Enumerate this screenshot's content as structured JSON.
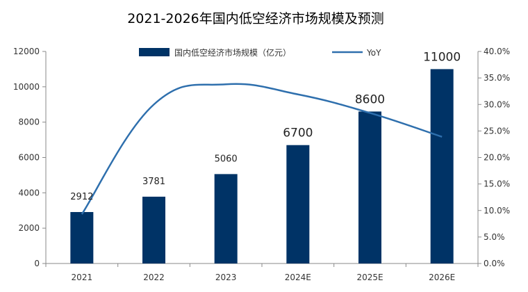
{
  "chart_data": {
    "type": "bar",
    "title": "2021-2026年国内低空经济市场规模及预测",
    "xlabel": "",
    "ylabel": "",
    "categories": [
      "2021",
      "2022",
      "2023",
      "2024E",
      "2025E",
      "2026E"
    ],
    "series": [
      {
        "name": "国内低空经济市场规模（亿元）",
        "type": "bar",
        "axis": "left",
        "values": [
          2912,
          3781,
          5060,
          6700,
          8600,
          11000
        ],
        "labels": [
          "2912",
          "3781",
          "5060",
          "6700",
          "8600",
          "11000"
        ],
        "color": "#003366"
      },
      {
        "name": "YoY",
        "type": "line",
        "axis": "right",
        "values": [
          9.3,
          30.0,
          33.8,
          31.9,
          28.4,
          23.9
        ],
        "color": "#2e6fad"
      }
    ],
    "ylim": [
      0,
      12000
    ],
    "y_ticks": [
      "0",
      "2000",
      "4000",
      "6000",
      "8000",
      "10000",
      "12000"
    ],
    "y2lim": [
      0,
      40
    ],
    "y2_ticks": [
      "0.0%",
      "5.0%",
      "10.0%",
      "15.0%",
      "20.0%",
      "25.0%",
      "30.0%",
      "35.0%",
      "40.0%"
    ],
    "legend": "top-center",
    "grid": false
  }
}
